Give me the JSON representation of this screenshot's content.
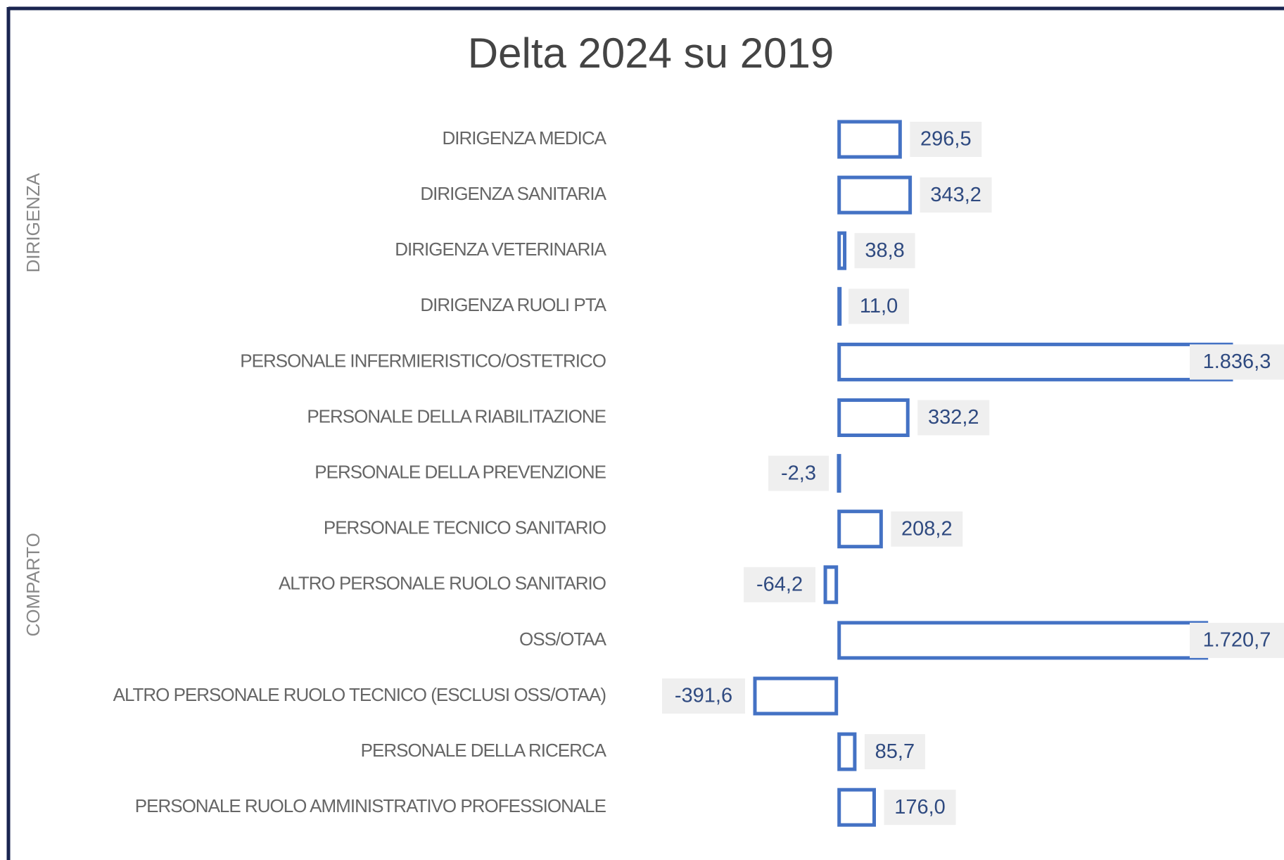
{
  "chart_data": {
    "type": "bar",
    "orientation": "horizontal",
    "title": "Delta 2024 su 2019",
    "categories": [
      "DIRIGENZA MEDICA",
      "DIRIGENZA SANITARIA",
      "DIRIGENZA VETERINARIA",
      "DIRIGENZA RUOLI PTA",
      "PERSONALE INFERMIERISTICO/OSTETRICO",
      "PERSONALE DELLA RIABILITAZIONE",
      "PERSONALE DELLA PREVENZIONE",
      "PERSONALE TECNICO SANITARIO",
      "ALTRO PERSONALE RUOLO SANITARIO",
      "OSS/OTAA",
      "ALTRO PERSONALE RUOLO TECNICO (ESCLUSI OSS/OTAA)",
      "PERSONALE DELLA RICERCA",
      "PERSONALE RUOLO AMMINISTRATIVO PROFESSIONALE"
    ],
    "groups": [
      {
        "name": "DIRIGENZA",
        "count": 4
      },
      {
        "name": "COMPARTO",
        "count": 9
      }
    ],
    "values": [
      296.5,
      343.2,
      38.8,
      11.0,
      1836.3,
      332.2,
      -2.3,
      208.2,
      -64.2,
      1720.7,
      -391.6,
      85.7,
      176.0
    ],
    "value_labels": [
      "296,5",
      "343,2",
      "38,8",
      "11,0",
      "1.836,3",
      "332,2",
      "-2,3",
      "208,2",
      "-64,2",
      "1.720,7",
      "-391,6",
      "85,7",
      "176,0"
    ],
    "color": "#4472c4"
  }
}
